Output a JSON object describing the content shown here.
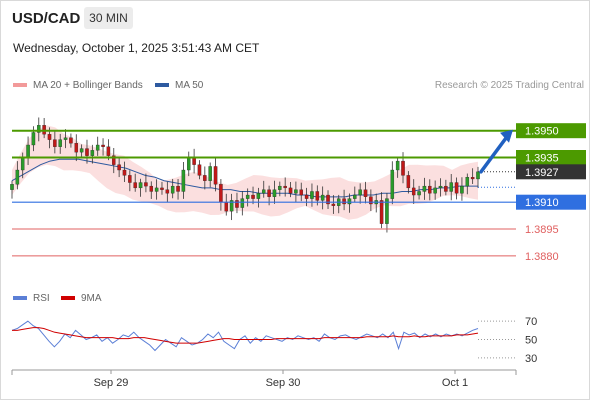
{
  "header": {
    "symbol": "USD/CAD",
    "timeframe": "30 MIN",
    "datetime": "Wednesday, October 1, 2025 3:51:43 AM CET"
  },
  "legend": {
    "ma20_label": "MA 20 + Bollinger Bands",
    "ma50_label": "MA 50",
    "rsi_label": "RSI",
    "ma9_label": "9MA"
  },
  "credit": "Research © 2025 Trading Central",
  "colors": {
    "resistance": "#4c9a00",
    "current": "#333333",
    "pivot": "#2f6fe0",
    "support": "#e06060",
    "candle_up": "#2a9a2a",
    "candle_down": "#c01818",
    "ma20": "#f29a9a",
    "ma50": "#2e5aa0",
    "bollinger": "#fbdcdc",
    "arrow": "#2060c0",
    "rsi": "#5b7fd6",
    "rsi_ma": "#d00000"
  },
  "chart_data": [
    {
      "type": "candlestick",
      "title": "USD/CAD 30 MIN",
      "x_tick_labels": [
        "Sep 29",
        "Sep 30",
        "Oct 1"
      ],
      "ylim": [
        1.3862,
        1.3975
      ],
      "price_levels": [
        {
          "value": 1.395,
          "label": "1.3950",
          "kind": "resistance"
        },
        {
          "value": 1.3935,
          "label": "1.3935",
          "kind": "resistance"
        },
        {
          "value": 1.3927,
          "label": "1.3927",
          "kind": "current"
        },
        {
          "value": 1.391,
          "label": "1.3910",
          "kind": "pivot"
        },
        {
          "value": 1.3895,
          "label": "1.3895",
          "kind": "support"
        },
        {
          "value": 1.388,
          "label": "1.3880",
          "kind": "support"
        }
      ],
      "indicators": [
        "MA 20 + Bollinger Bands",
        "MA 50"
      ],
      "forecast_arrow": {
        "from": 1.3927,
        "to": 1.395,
        "direction": "up"
      },
      "close_path": [
        1.392,
        1.3928,
        1.3935,
        1.3942,
        1.3949,
        1.3953,
        1.3948,
        1.3945,
        1.3941,
        1.3945,
        1.3946,
        1.3943,
        1.3938,
        1.394,
        1.3936,
        1.3939,
        1.3942,
        1.3941,
        1.3936,
        1.3931,
        1.3928,
        1.3925,
        1.3921,
        1.3918,
        1.3921,
        1.3919,
        1.3916,
        1.3918,
        1.3917,
        1.3915,
        1.3919,
        1.3916,
        1.3928,
        1.3935,
        1.3931,
        1.3925,
        1.3922,
        1.393,
        1.392,
        1.391,
        1.3905,
        1.3911,
        1.3907,
        1.3912,
        1.3914,
        1.3912,
        1.3915,
        1.3917,
        1.3913,
        1.3917,
        1.3919,
        1.3918,
        1.3915,
        1.3917,
        1.3914,
        1.3912,
        1.3916,
        1.3911,
        1.3914,
        1.3909,
        1.3908,
        1.3912,
        1.3909,
        1.3912,
        1.3914,
        1.3917,
        1.3913,
        1.3909,
        1.3911,
        1.3898,
        1.3912,
        1.3928,
        1.3933,
        1.3925,
        1.3918,
        1.3914,
        1.3916,
        1.3919,
        1.3915,
        1.3918,
        1.3919,
        1.3916,
        1.3921,
        1.3915,
        1.3919,
        1.3924,
        1.3923,
        1.3927
      ],
      "ma20": [
        1.3921,
        1.3929,
        1.3936,
        1.394,
        1.3942,
        1.3941,
        1.3938,
        1.3937,
        1.3935,
        1.3934,
        1.3931,
        1.3928,
        1.3926,
        1.3925,
        1.3922,
        1.392,
        1.3918,
        1.3915,
        1.3914,
        1.3914,
        1.3915,
        1.3916,
        1.3915,
        1.3913,
        1.3912,
        1.3912,
        1.3913,
        1.3914,
        1.3915,
        1.3914,
        1.3913,
        1.3913,
        1.3914,
        1.3915,
        1.3915,
        1.3914,
        1.3913,
        1.3913,
        1.3913,
        1.3911,
        1.3911,
        1.3912,
        1.3914,
        1.3916,
        1.3917,
        1.3918,
        1.392,
        1.392,
        1.392,
        1.3921,
        1.3922,
        1.3921,
        1.3922,
        1.3922,
        1.3922
      ],
      "ma50": [
        1.3922,
        1.3925,
        1.3928,
        1.3931,
        1.3933,
        1.3934,
        1.3934,
        1.3934,
        1.3933,
        1.3932,
        1.3931,
        1.393,
        1.3929,
        1.3927,
        1.3925,
        1.3924,
        1.3922,
        1.3921,
        1.392,
        1.3919,
        1.3918,
        1.3918,
        1.3917,
        1.3917,
        1.3916,
        1.3916,
        1.3915,
        1.3915,
        1.3915,
        1.3915,
        1.3914,
        1.3914,
        1.3913,
        1.3913,
        1.3913,
        1.3913,
        1.3914,
        1.3914,
        1.3914,
        1.3915,
        1.3915,
        1.3916,
        1.3916,
        1.3917,
        1.3917,
        1.3918,
        1.3918,
        1.3919,
        1.3919,
        1.3919
      ]
    },
    {
      "type": "line",
      "title": "RSI",
      "ylim": [
        20,
        80
      ],
      "y_ticks": [
        70,
        50,
        30
      ],
      "series": [
        {
          "name": "RSI",
          "values": [
            60,
            62,
            66,
            70,
            65,
            62,
            55,
            48,
            42,
            48,
            56,
            52,
            60,
            55,
            50,
            52,
            55,
            48,
            52,
            46,
            50,
            55,
            53,
            58,
            52,
            48,
            44,
            38,
            44,
            50,
            46,
            42,
            52,
            48,
            44,
            46,
            50,
            56,
            52,
            58,
            48,
            44,
            40,
            50,
            54,
            46,
            52,
            48,
            54,
            52,
            50,
            48,
            52,
            50,
            54,
            52,
            50,
            52,
            48,
            56,
            52,
            50,
            54,
            55,
            52,
            50,
            53,
            56,
            54,
            52,
            56,
            52,
            58,
            40,
            58,
            55,
            57,
            52,
            56,
            53,
            56,
            53,
            56,
            54,
            56,
            54,
            57,
            60,
            62
          ]
        },
        {
          "name": "9MA",
          "values": [
            60,
            60,
            61,
            62,
            63,
            63,
            62,
            60,
            58,
            57,
            56,
            55,
            54,
            53,
            52,
            52,
            52,
            52,
            52,
            52,
            51,
            51,
            51,
            52,
            52,
            52,
            51,
            50,
            49,
            48,
            47,
            46,
            46,
            46,
            46,
            46,
            47,
            48,
            49,
            50,
            51,
            51,
            50,
            50,
            50,
            50,
            50,
            50,
            50,
            50,
            51,
            51,
            51,
            51,
            51,
            51,
            51,
            51,
            51,
            52,
            52,
            52,
            52,
            52,
            52,
            52,
            52,
            53,
            53,
            53,
            53,
            53,
            54,
            53,
            53,
            53,
            54,
            53,
            53,
            54,
            54,
            54,
            54,
            54,
            55,
            55,
            55,
            56,
            57
          ]
        }
      ]
    }
  ]
}
